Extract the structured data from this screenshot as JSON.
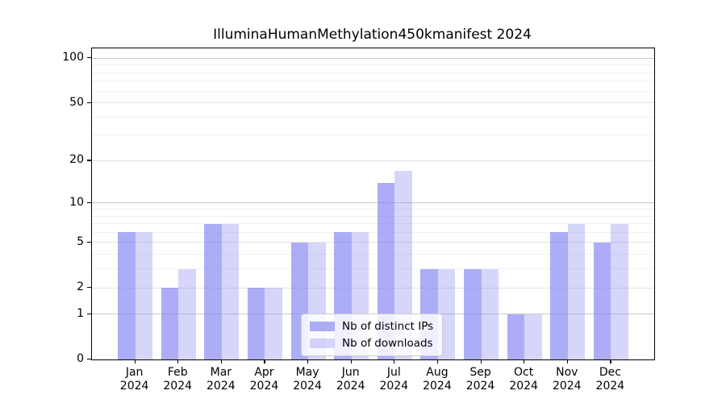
{
  "chart_data": {
    "type": "bar",
    "title": "IlluminaHumanMethylation450kmanifest 2024",
    "scale": "log1p",
    "categories": [
      "Jan",
      "Feb",
      "Mar",
      "Apr",
      "May",
      "Jun",
      "Jul",
      "Aug",
      "Sep",
      "Oct",
      "Nov",
      "Dec"
    ],
    "x_year_label": "2024",
    "series": [
      {
        "name": "Nb of distinct IPs",
        "values": [
          6,
          2,
          7,
          2,
          5,
          6,
          14,
          3,
          3,
          1,
          6,
          5
        ],
        "color": "#8282f3",
        "alpha": 0.66
      },
      {
        "name": "Nb of downloads",
        "values": [
          6,
          3,
          7,
          2,
          5,
          6,
          17,
          3,
          3,
          1,
          7,
          7
        ],
        "color": "#8282f3",
        "alpha": 0.33
      }
    ],
    "y_ticks": [
      0,
      1,
      2,
      5,
      10,
      20,
      50,
      100
    ],
    "y_decade_gridlines": [
      1,
      10,
      100
    ],
    "y_mid_gridlines": [
      2,
      5,
      20,
      50
    ],
    "y_minor_gridlines": [
      3,
      4,
      6,
      7,
      8,
      9,
      30,
      40,
      60,
      70,
      80,
      90
    ],
    "ylim": [
      0,
      117
    ],
    "grid": true,
    "legend_position": "lower center"
  },
  "colors": {
    "bar_base": "#8282f3",
    "grid_decade": "#c9c9c9",
    "grid_mid": "#e2e2e2",
    "grid_minor": "#f1f1f1",
    "spine": "#000000",
    "legend_border": "#cccccc"
  }
}
